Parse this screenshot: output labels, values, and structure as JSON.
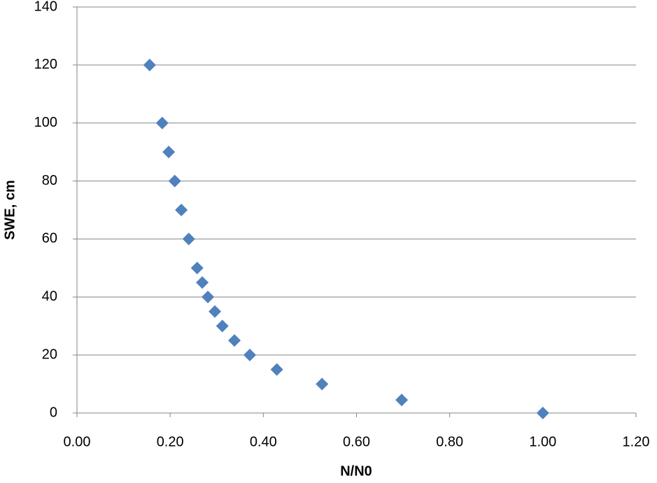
{
  "chart_data": {
    "type": "scatter",
    "x_label": "N/N0",
    "y_label": "SWE, cm",
    "series": [
      {
        "name": "SWE",
        "color": "#4f81bd",
        "x": [
          0.156,
          0.183,
          0.197,
          0.21,
          0.224,
          0.24,
          0.258,
          0.269,
          0.281,
          0.296,
          0.312,
          0.338,
          0.371,
          0.429,
          0.526,
          0.697,
          1.0
        ],
        "values": [
          120,
          100,
          90,
          80,
          70,
          60,
          50,
          45,
          40,
          35,
          30,
          25,
          20,
          15,
          10,
          4.5,
          0
        ]
      }
    ],
    "xlim": [
      0,
      1.2
    ],
    "xticks": [
      {
        "value": 0,
        "label": "0.00"
      },
      {
        "value": 0.2,
        "label": "0.20"
      },
      {
        "value": 0.4,
        "label": "0.40"
      },
      {
        "value": 0.6,
        "label": "0.60"
      },
      {
        "value": 0.8,
        "label": "0.80"
      },
      {
        "value": 1.0,
        "label": "1.00"
      },
      {
        "value": 1.2,
        "label": "1.20"
      }
    ],
    "ylim": [
      0,
      140
    ],
    "yticks": [
      0,
      20,
      40,
      60,
      80,
      100,
      120,
      140
    ],
    "grid": true
  }
}
